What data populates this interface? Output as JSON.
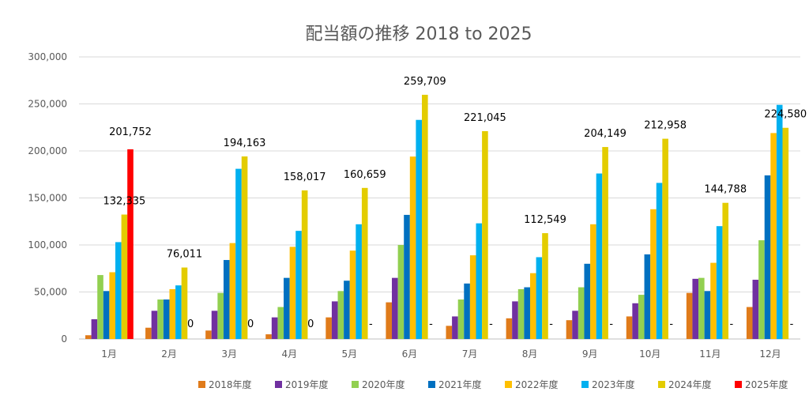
{
  "chart_data": {
    "type": "bar",
    "title": "配当額の推移  2018 to 2025",
    "categories": [
      "1月",
      "2月",
      "3月",
      "4月",
      "5月",
      "6月",
      "7月",
      "8月",
      "9月",
      "10月",
      "11月",
      "12月"
    ],
    "ylim": [
      0,
      300000
    ],
    "yticks": [
      "0",
      "50,000",
      "100,000",
      "150,000",
      "200,000",
      "250,000",
      "300,000"
    ],
    "ytick_values": [
      0,
      50000,
      100000,
      150000,
      200000,
      250000,
      300000
    ],
    "grid": true,
    "legend_position": "bottom",
    "series": [
      {
        "name": "2018年度",
        "color": "#E07B1A",
        "values": [
          4000,
          12000,
          9000,
          5000,
          23000,
          39000,
          14000,
          22000,
          20000,
          24000,
          49000,
          34000
        ]
      },
      {
        "name": "2019年度",
        "color": "#7030A0",
        "values": [
          21000,
          30000,
          30000,
          23000,
          40000,
          65000,
          24000,
          40000,
          30000,
          38000,
          64000,
          63000
        ]
      },
      {
        "name": "2020年度",
        "color": "#92D050",
        "values": [
          68000,
          42000,
          49000,
          34000,
          51000,
          100000,
          42000,
          53000,
          55000,
          47000,
          65000,
          105000
        ]
      },
      {
        "name": "2021年度",
        "color": "#0070C0",
        "values": [
          51000,
          42000,
          84000,
          65000,
          62000,
          132000,
          59000,
          55000,
          80000,
          90000,
          51000,
          174000
        ]
      },
      {
        "name": "2022年度",
        "color": "#FFC000",
        "values": [
          71000,
          53000,
          102000,
          98000,
          94000,
          194000,
          89000,
          70000,
          122000,
          138000,
          81000,
          219000
        ]
      },
      {
        "name": "2023年度",
        "color": "#00B0F0",
        "values": [
          103000,
          57000,
          181000,
          115000,
          122000,
          233000,
          123000,
          87000,
          176000,
          166000,
          120000,
          249000
        ]
      },
      {
        "name": "2024年度",
        "color": "#E3CC00",
        "values": [
          132335,
          76011,
          194163,
          158017,
          160659,
          259709,
          221045,
          112549,
          204149,
          212958,
          144788,
          224580
        ]
      },
      {
        "name": "2025年度",
        "color": "#FF0000",
        "values": [
          201752,
          0,
          0,
          0,
          null,
          null,
          null,
          null,
          null,
          null,
          null,
          null
        ]
      }
    ],
    "data_labels_2024": [
      "132,335",
      "76,011",
      "194,163",
      "158,017",
      "160,659",
      "259,709",
      "221,045",
      "112,549",
      "204,149",
      "212,958",
      "144,788",
      "224,580"
    ],
    "data_labels_2025": [
      "201,752",
      "0",
      "0",
      "0",
      "-",
      "-",
      "-",
      "-",
      "-",
      "-",
      "-",
      "-"
    ]
  }
}
